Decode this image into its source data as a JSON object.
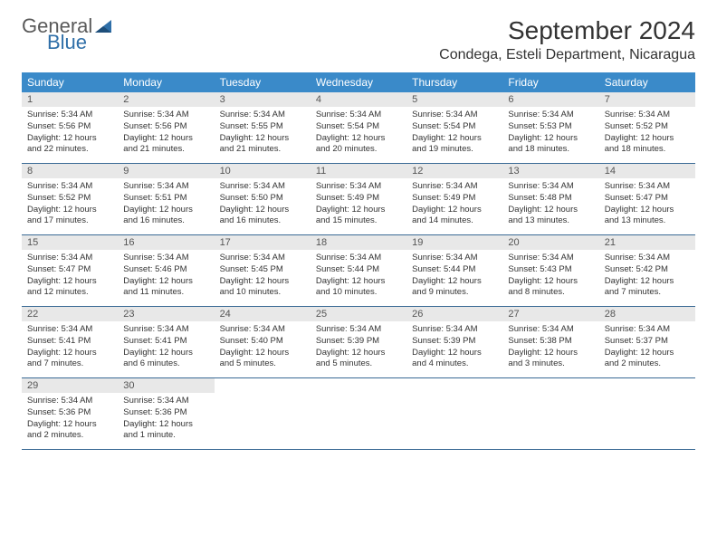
{
  "logo": {
    "general": "General",
    "blue": "Blue"
  },
  "title": "September 2024",
  "location": "Condega, Esteli Department, Nicaragua",
  "colors": {
    "header_bg": "#3a8ac9",
    "header_text": "#ffffff",
    "daynum_bg": "#e8e8e8",
    "week_border": "#3a6a95",
    "logo_gray": "#5a5a5a",
    "logo_blue": "#2f6fa8"
  },
  "day_names": [
    "Sunday",
    "Monday",
    "Tuesday",
    "Wednesday",
    "Thursday",
    "Friday",
    "Saturday"
  ],
  "weeks": [
    [
      {
        "n": "1",
        "sunrise": "5:34 AM",
        "sunset": "5:56 PM",
        "dl": "12 hours and 22 minutes."
      },
      {
        "n": "2",
        "sunrise": "5:34 AM",
        "sunset": "5:56 PM",
        "dl": "12 hours and 21 minutes."
      },
      {
        "n": "3",
        "sunrise": "5:34 AM",
        "sunset": "5:55 PM",
        "dl": "12 hours and 21 minutes."
      },
      {
        "n": "4",
        "sunrise": "5:34 AM",
        "sunset": "5:54 PM",
        "dl": "12 hours and 20 minutes."
      },
      {
        "n": "5",
        "sunrise": "5:34 AM",
        "sunset": "5:54 PM",
        "dl": "12 hours and 19 minutes."
      },
      {
        "n": "6",
        "sunrise": "5:34 AM",
        "sunset": "5:53 PM",
        "dl": "12 hours and 18 minutes."
      },
      {
        "n": "7",
        "sunrise": "5:34 AM",
        "sunset": "5:52 PM",
        "dl": "12 hours and 18 minutes."
      }
    ],
    [
      {
        "n": "8",
        "sunrise": "5:34 AM",
        "sunset": "5:52 PM",
        "dl": "12 hours and 17 minutes."
      },
      {
        "n": "9",
        "sunrise": "5:34 AM",
        "sunset": "5:51 PM",
        "dl": "12 hours and 16 minutes."
      },
      {
        "n": "10",
        "sunrise": "5:34 AM",
        "sunset": "5:50 PM",
        "dl": "12 hours and 16 minutes."
      },
      {
        "n": "11",
        "sunrise": "5:34 AM",
        "sunset": "5:49 PM",
        "dl": "12 hours and 15 minutes."
      },
      {
        "n": "12",
        "sunrise": "5:34 AM",
        "sunset": "5:49 PM",
        "dl": "12 hours and 14 minutes."
      },
      {
        "n": "13",
        "sunrise": "5:34 AM",
        "sunset": "5:48 PM",
        "dl": "12 hours and 13 minutes."
      },
      {
        "n": "14",
        "sunrise": "5:34 AM",
        "sunset": "5:47 PM",
        "dl": "12 hours and 13 minutes."
      }
    ],
    [
      {
        "n": "15",
        "sunrise": "5:34 AM",
        "sunset": "5:47 PM",
        "dl": "12 hours and 12 minutes."
      },
      {
        "n": "16",
        "sunrise": "5:34 AM",
        "sunset": "5:46 PM",
        "dl": "12 hours and 11 minutes."
      },
      {
        "n": "17",
        "sunrise": "5:34 AM",
        "sunset": "5:45 PM",
        "dl": "12 hours and 10 minutes."
      },
      {
        "n": "18",
        "sunrise": "5:34 AM",
        "sunset": "5:44 PM",
        "dl": "12 hours and 10 minutes."
      },
      {
        "n": "19",
        "sunrise": "5:34 AM",
        "sunset": "5:44 PM",
        "dl": "12 hours and 9 minutes."
      },
      {
        "n": "20",
        "sunrise": "5:34 AM",
        "sunset": "5:43 PM",
        "dl": "12 hours and 8 minutes."
      },
      {
        "n": "21",
        "sunrise": "5:34 AM",
        "sunset": "5:42 PM",
        "dl": "12 hours and 7 minutes."
      }
    ],
    [
      {
        "n": "22",
        "sunrise": "5:34 AM",
        "sunset": "5:41 PM",
        "dl": "12 hours and 7 minutes."
      },
      {
        "n": "23",
        "sunrise": "5:34 AM",
        "sunset": "5:41 PM",
        "dl": "12 hours and 6 minutes."
      },
      {
        "n": "24",
        "sunrise": "5:34 AM",
        "sunset": "5:40 PM",
        "dl": "12 hours and 5 minutes."
      },
      {
        "n": "25",
        "sunrise": "5:34 AM",
        "sunset": "5:39 PM",
        "dl": "12 hours and 5 minutes."
      },
      {
        "n": "26",
        "sunrise": "5:34 AM",
        "sunset": "5:39 PM",
        "dl": "12 hours and 4 minutes."
      },
      {
        "n": "27",
        "sunrise": "5:34 AM",
        "sunset": "5:38 PM",
        "dl": "12 hours and 3 minutes."
      },
      {
        "n": "28",
        "sunrise": "5:34 AM",
        "sunset": "5:37 PM",
        "dl": "12 hours and 2 minutes."
      }
    ],
    [
      {
        "n": "29",
        "sunrise": "5:34 AM",
        "sunset": "5:36 PM",
        "dl": "12 hours and 2 minutes."
      },
      {
        "n": "30",
        "sunrise": "5:34 AM",
        "sunset": "5:36 PM",
        "dl": "12 hours and 1 minute."
      },
      null,
      null,
      null,
      null,
      null
    ]
  ],
  "labels": {
    "sunrise": "Sunrise:",
    "sunset": "Sunset:",
    "daylight": "Daylight:"
  }
}
